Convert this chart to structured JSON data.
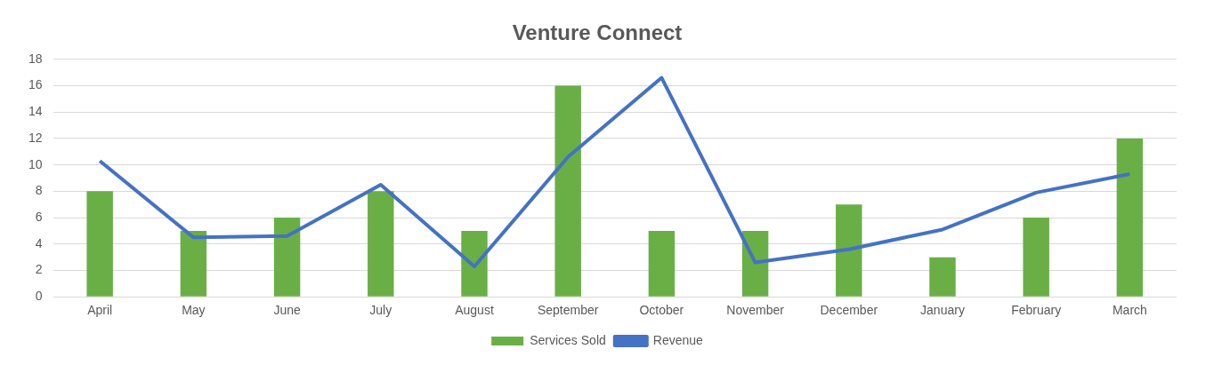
{
  "chart_data": {
    "type": "bar",
    "title": "Venture Connect",
    "categories": [
      "April",
      "May",
      "June",
      "July",
      "August",
      "September",
      "October",
      "November",
      "December",
      "January",
      "February",
      "March"
    ],
    "series": [
      {
        "name": "Services Sold",
        "color": "#6aaf46",
        "values": [
          8,
          5,
          6,
          8,
          5,
          16,
          5,
          5,
          7,
          3,
          6,
          12
        ]
      },
      {
        "name": "Revenue",
        "type": "line",
        "color": "#4472c4",
        "values": [
          10.3,
          4.5,
          4.6,
          8.5,
          2.3,
          10.6,
          16.6,
          2.6,
          3.6,
          5.1,
          7.9,
          9.3
        ]
      }
    ],
    "ylim": [
      0,
      18
    ],
    "yticks": [
      0,
      2,
      4,
      6,
      8,
      10,
      12,
      14,
      16,
      18
    ],
    "grid": "y",
    "legend": "bottom",
    "marker": "none",
    "line_style": "solid"
  }
}
